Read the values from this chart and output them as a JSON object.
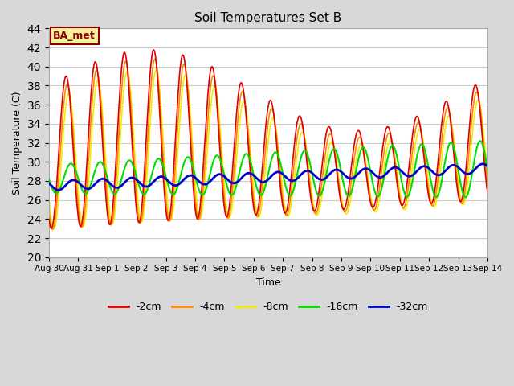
{
  "title": "Soil Temperatures Set B",
  "xlabel": "Time",
  "ylabel": "Soil Temperature (C)",
  "ylim": [
    20,
    44
  ],
  "yticks": [
    20,
    22,
    24,
    26,
    28,
    30,
    32,
    34,
    36,
    38,
    40,
    42,
    44
  ],
  "fig_bg_color": "#d8d8d8",
  "plot_bg_color": "#ffffff",
  "annotation_text": "BA_met",
  "annotation_bg": "#f5f0a0",
  "annotation_border": "#8b0000",
  "series_colors": {
    "-2cm": "#dd0000",
    "-4cm": "#ff8800",
    "-8cm": "#eeee00",
    "-16cm": "#00dd00",
    "-32cm": "#0000cc"
  },
  "series_linewidths": {
    "-2cm": 1.2,
    "-4cm": 1.2,
    "-8cm": 1.2,
    "-16cm": 1.5,
    "-32cm": 2.0
  },
  "x_tick_labels": [
    "Aug 30",
    "Aug 31",
    "Sep 1",
    "Sep 2",
    "Sep 3",
    "Sep 4",
    "Sep 5",
    "Sep 6",
    "Sep 7",
    "Sep 8",
    "Sep 9",
    "Sep 10",
    "Sep 11",
    "Sep 12",
    "Sep 13",
    "Sep 14"
  ],
  "x_tick_positions": [
    0,
    1,
    2,
    3,
    4,
    5,
    6,
    7,
    8,
    9,
    10,
    11,
    12,
    13,
    14,
    15
  ]
}
